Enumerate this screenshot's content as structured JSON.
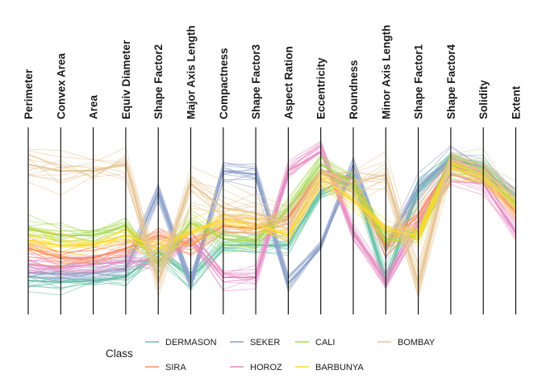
{
  "chart_data": {
    "type": "parallel_coordinates",
    "axes": [
      "Perimeter",
      "Convex Area",
      "Area",
      "Equiv Diameter",
      "Shape Factor2",
      "Major Axis Length",
      "Compactness",
      "Shape Factor3",
      "Aspect Ration",
      "Eccentricity",
      "Roundness",
      "Minor Axis Length",
      "Shape Factor1",
      "Shape Factor4",
      "Solidity",
      "Extent"
    ],
    "value_range": [
      0,
      1
    ],
    "legend": {
      "title": "Class",
      "placement": "bottom"
    },
    "series": [
      {
        "name": "DERMASON",
        "color": "#66C2A5",
        "values": [
          0.1,
          0.09,
          0.1,
          0.12,
          0.28,
          0.12,
          0.32,
          0.32,
          0.32,
          0.66,
          0.74,
          0.1,
          0.66,
          0.86,
          0.8,
          0.6
        ]
      },
      {
        "name": "SIRA",
        "color": "#FC8D62",
        "values": [
          0.3,
          0.24,
          0.24,
          0.3,
          0.38,
          0.32,
          0.44,
          0.42,
          0.48,
          0.78,
          0.7,
          0.32,
          0.5,
          0.82,
          0.76,
          0.52
        ]
      },
      {
        "name": "SEKER",
        "color": "#8DA0CB",
        "values": [
          0.15,
          0.14,
          0.15,
          0.17,
          0.65,
          0.08,
          0.78,
          0.76,
          0.08,
          0.3,
          0.82,
          0.3,
          0.68,
          0.86,
          0.78,
          0.62
        ]
      },
      {
        "name": "HOROZ",
        "color": "#E78AC3",
        "values": [
          0.2,
          0.18,
          0.2,
          0.22,
          0.22,
          0.36,
          0.12,
          0.12,
          0.78,
          0.9,
          0.4,
          0.1,
          0.45,
          0.76,
          0.7,
          0.4
        ]
      },
      {
        "name": "CALI",
        "color": "#A6D854",
        "values": [
          0.42,
          0.38,
          0.38,
          0.44,
          0.2,
          0.46,
          0.36,
          0.34,
          0.55,
          0.82,
          0.7,
          0.36,
          0.38,
          0.82,
          0.76,
          0.58
        ]
      },
      {
        "name": "BARBUNYA",
        "color": "#FFD92F",
        "values": [
          0.35,
          0.32,
          0.32,
          0.38,
          0.3,
          0.4,
          0.48,
          0.45,
          0.38,
          0.74,
          0.6,
          0.42,
          0.38,
          0.8,
          0.74,
          0.56
        ]
      },
      {
        "name": "BOMBAY",
        "color": "#E5C494",
        "values": [
          0.82,
          0.78,
          0.78,
          0.82,
          0.1,
          0.7,
          0.55,
          0.52,
          0.45,
          0.78,
          0.7,
          0.76,
          0.08,
          0.85,
          0.78,
          0.6
        ]
      }
    ]
  }
}
